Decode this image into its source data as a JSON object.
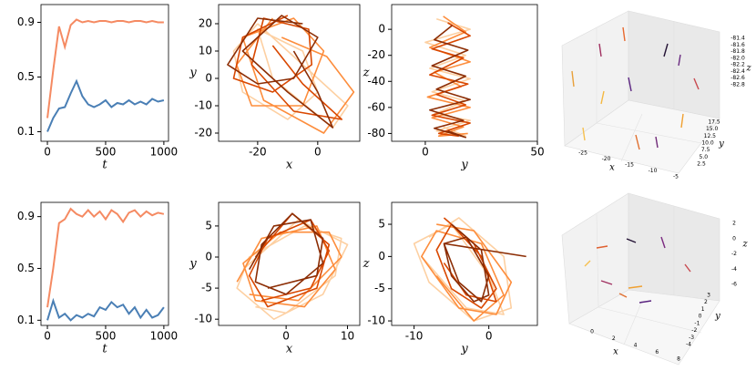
{
  "chart_data": [
    {
      "type": "line",
      "xlabel": "t",
      "x": [
        0,
        50,
        100,
        150,
        200,
        250,
        300,
        350,
        400,
        450,
        500,
        550,
        600,
        650,
        700,
        750,
        800,
        850,
        900,
        950,
        1000
      ],
      "series": [
        {
          "color": "#f58a62",
          "values": [
            0.2,
            0.55,
            0.87,
            0.72,
            0.88,
            0.92,
            0.9,
            0.91,
            0.9,
            0.91,
            0.91,
            0.9,
            0.91,
            0.91,
            0.9,
            0.91,
            0.91,
            0.9,
            0.91,
            0.9,
            0.9
          ]
        },
        {
          "color": "#4a7fb5",
          "values": [
            0.1,
            0.2,
            0.27,
            0.28,
            0.38,
            0.47,
            0.36,
            0.3,
            0.28,
            0.3,
            0.33,
            0.28,
            0.31,
            0.3,
            0.33,
            0.3,
            0.32,
            0.3,
            0.34,
            0.32,
            0.33
          ]
        }
      ],
      "xlim": [
        -55,
        1040
      ],
      "xticks": [
        0,
        500,
        1000
      ],
      "ylim": [
        0.03,
        1.03
      ],
      "yticks": [
        0.1,
        0.5,
        0.9
      ]
    },
    {
      "type": "phase",
      "xlabel": "x",
      "ylabel": "y",
      "series": [
        {
          "color": "#fdd0a2",
          "x": [
            -20,
            -28,
            -25,
            -10,
            0,
            -5,
            -20,
            -15,
            5,
            10,
            0,
            -10,
            -20
          ],
          "y": [
            20,
            10,
            -5,
            -15,
            -5,
            10,
            18,
            0,
            -18,
            -10,
            0,
            10,
            20
          ]
        },
        {
          "color": "#fd8d3c",
          "x": [
            -15,
            -27,
            -22,
            -5,
            2,
            -8,
            -25,
            -18,
            2,
            12,
            3,
            -12
          ],
          "y": [
            22,
            5,
            -10,
            -10,
            10,
            22,
            15,
            -8,
            -20,
            -5,
            8,
            15
          ]
        },
        {
          "color": "#d94801",
          "x": [
            -10,
            -25,
            -28,
            -15,
            -2,
            -3,
            -18,
            -22,
            -8,
            8,
            -5,
            -15
          ],
          "y": [
            23,
            15,
            0,
            -5,
            5,
            18,
            22,
            5,
            -12,
            -15,
            -2,
            12
          ]
        },
        {
          "color": "#8c2d04",
          "x": [
            -5,
            -20,
            -30,
            -20,
            -8,
            0,
            -12,
            -25,
            -10,
            5,
            0,
            -8
          ],
          "y": [
            20,
            22,
            5,
            -2,
            0,
            15,
            23,
            10,
            -5,
            -18,
            -5,
            10
          ]
        }
      ],
      "xlim": [
        -33,
        14
      ],
      "xticks": [
        -20,
        0
      ],
      "ylim": [
        -23,
        27
      ],
      "yticks": [
        20,
        10,
        0,
        -10,
        -20
      ]
    },
    {
      "type": "phase",
      "xlabel": "y",
      "ylabel": "z",
      "series": [
        {
          "color": "#fdd0a2",
          "x": [
            5,
            20,
            0,
            18,
            2,
            20,
            3,
            18,
            4,
            20,
            5,
            18,
            8
          ],
          "y": [
            8,
            0,
            -10,
            -20,
            -30,
            -38,
            -48,
            -55,
            -65,
            -70,
            -78,
            -82,
            -75
          ]
        },
        {
          "color": "#fd8d3c",
          "x": [
            8,
            18,
            2,
            20,
            4,
            16,
            1,
            20,
            3,
            17,
            6,
            19
          ],
          "y": [
            10,
            -2,
            -14,
            -25,
            -33,
            -44,
            -52,
            -60,
            -68,
            -75,
            -82,
            -80
          ]
        },
        {
          "color": "#d94801",
          "x": [
            10,
            20,
            3,
            17,
            2,
            19,
            5,
            18,
            3,
            20,
            6,
            15
          ],
          "y": [
            5,
            -5,
            -15,
            -22,
            -35,
            -42,
            -50,
            -58,
            -66,
            -72,
            -80,
            -82
          ]
        },
        {
          "color": "#8c2d04",
          "x": [
            12,
            4,
            19,
            3,
            18,
            5,
            20,
            2,
            17,
            4,
            18,
            10
          ],
          "y": [
            3,
            -8,
            -16,
            -28,
            -36,
            -46,
            -54,
            -62,
            -70,
            -76,
            -83,
            -78
          ]
        }
      ],
      "xlim": [
        -15,
        50
      ],
      "xticks": [
        0,
        50
      ],
      "ylim": [
        -86,
        19
      ],
      "yticks": [
        0,
        -20,
        -40,
        -60,
        -80
      ]
    },
    {
      "type": "3d",
      "xlabel": "x",
      "ylabel": "y",
      "zlabel": "z",
      "xticks": [
        -25,
        -20,
        -15,
        -10,
        -5
      ],
      "yticks": [
        {
          "value": 2.5,
          "label": "2.5"
        },
        {
          "value": 5.0,
          "label": "5.0"
        },
        {
          "value": 7.5,
          "label": "7.5"
        },
        {
          "value": 10.0,
          "label": "10.0"
        },
        {
          "value": 12.5,
          "label": "12.5"
        },
        {
          "value": 15.0,
          "label": "15.0"
        },
        {
          "value": 17.5,
          "label": "17.5"
        }
      ],
      "zticks": [
        -81.4,
        -81.6,
        -81.8,
        {
          "value": -82.0,
          "label": "-82.0"
        },
        -82.2,
        -82.4,
        -82.6,
        -82.8
      ]
    },
    {
      "type": "line",
      "xlabel": "t",
      "x": [
        0,
        50,
        100,
        150,
        200,
        250,
        300,
        350,
        400,
        450,
        500,
        550,
        600,
        650,
        700,
        750,
        800,
        850,
        900,
        950,
        1000
      ],
      "series": [
        {
          "color": "#f58a62",
          "values": [
            0.2,
            0.5,
            0.85,
            0.88,
            0.96,
            0.92,
            0.9,
            0.95,
            0.9,
            0.94,
            0.88,
            0.95,
            0.92,
            0.86,
            0.93,
            0.95,
            0.9,
            0.94,
            0.91,
            0.93,
            0.92
          ]
        },
        {
          "color": "#4a7fb5",
          "values": [
            0.1,
            0.25,
            0.12,
            0.15,
            0.1,
            0.14,
            0.12,
            0.15,
            0.13,
            0.2,
            0.18,
            0.24,
            0.2,
            0.22,
            0.15,
            0.2,
            0.12,
            0.18,
            0.12,
            0.14,
            0.2
          ]
        }
      ],
      "xlim": [
        -55,
        1040
      ],
      "xticks": [
        0,
        500,
        1000
      ],
      "ylim": [
        0.06,
        1.01
      ],
      "yticks": [
        0.1,
        0.5,
        0.9
      ]
    },
    {
      "type": "phase",
      "xlabel": "x",
      "ylabel": "y",
      "series": [
        {
          "color": "#fdd0a2",
          "x": [
            -5,
            0,
            8,
            9,
            3,
            -6,
            -8,
            -2,
            6,
            10,
            2,
            -7
          ],
          "y": [
            -8,
            -9,
            -3,
            3,
            5,
            0,
            -5,
            -10,
            -6,
            2,
            6,
            -2
          ]
        },
        {
          "color": "#fd8d3c",
          "x": [
            -6,
            2,
            9,
            7,
            -1,
            -7,
            -5,
            3,
            8,
            5,
            -4,
            -8
          ],
          "y": [
            -6,
            -7,
            0,
            4,
            4,
            -1,
            -7,
            -8,
            -2,
            5,
            3,
            -4
          ]
        },
        {
          "color": "#d94801",
          "x": [
            -4,
            4,
            7,
            4,
            -3,
            -6,
            -3,
            5,
            7,
            1,
            -5
          ],
          "y": [
            -7,
            -5,
            1,
            6,
            3,
            -3,
            -8,
            -5,
            2,
            7,
            0
          ]
        },
        {
          "color": "#8c2d04",
          "x": [
            -3,
            5,
            6,
            1,
            -4,
            -5,
            0,
            6,
            4,
            -2,
            -6
          ],
          "y": [
            -5,
            -3,
            3,
            7,
            2,
            -4,
            -6,
            -1,
            6,
            5,
            -2
          ]
        }
      ],
      "xlim": [
        -11,
        12
      ],
      "xticks": [
        0,
        10
      ],
      "ylim": [
        -11,
        8.8
      ],
      "yticks": [
        5,
        0,
        -5,
        -10
      ]
    },
    {
      "type": "phase",
      "xlabel": "y",
      "ylabel": "z",
      "series": [
        {
          "color": "#fdd0a2",
          "x": [
            -8,
            -4,
            2,
            3,
            -2,
            -8,
            -10,
            -5,
            0,
            2,
            -3,
            -9
          ],
          "y": [
            3,
            6,
            0,
            -8,
            -10,
            -4,
            2,
            5,
            -3,
            -9,
            -8,
            0
          ]
        },
        {
          "color": "#fd8d3c",
          "x": [
            -7,
            -2,
            3,
            1,
            -4,
            -9,
            -7,
            -1,
            2,
            -2,
            -7
          ],
          "y": [
            5,
            4,
            -4,
            -9,
            -8,
            0,
            4,
            2,
            -6,
            -10,
            -3
          ]
        },
        {
          "color": "#d94801",
          "x": [
            -6,
            -2,
            1,
            -1,
            -5,
            -7,
            -5,
            -1,
            1,
            -3,
            -6
          ],
          "y": [
            6,
            2,
            -5,
            -8,
            -5,
            1,
            5,
            0,
            -7,
            -6,
            -1
          ]
        },
        {
          "color": "#8c2d04",
          "x": [
            -5,
            -1,
            0,
            -2,
            -5,
            -6,
            -3,
            0,
            -1,
            -4,
            -6,
            5
          ],
          "y": [
            5,
            1,
            -6,
            -7,
            -3,
            2,
            3,
            -3,
            -7,
            -4,
            2,
            0
          ]
        }
      ],
      "xlim": [
        -13,
        6.5
      ],
      "xticks": [
        -10,
        0
      ],
      "ylim": [
        -10.7,
        8.4
      ],
      "yticks": [
        5,
        0,
        -5,
        -10
      ]
    },
    {
      "type": "3d",
      "xlabel": "x",
      "ylabel": "y",
      "zlabel": "z",
      "xticks": [
        0,
        2,
        4,
        6,
        8
      ],
      "yticks": [
        -4,
        -3,
        -2,
        -1,
        0,
        1,
        2,
        3
      ],
      "zticks": [
        2,
        0,
        -2,
        -4,
        -6
      ]
    }
  ]
}
